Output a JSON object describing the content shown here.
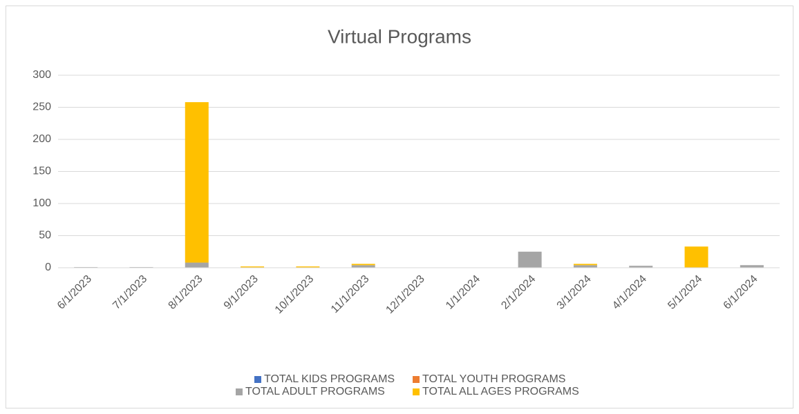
{
  "chart_data": {
    "type": "bar",
    "stacked": true,
    "title": "Virtual Programs",
    "categories": [
      "6/1/2023",
      "7/1/2023",
      "8/1/2023",
      "9/1/2023",
      "10/1/2023",
      "11/1/2023",
      "12/1/2023",
      "1/1/2024",
      "2/1/2024",
      "3/1/2024",
      "4/1/2024",
      "5/1/2024",
      "6/1/2024"
    ],
    "series": [
      {
        "name": "TOTAL KIDS PROGRAMS",
        "color": "#4472c4",
        "values": [
          0,
          0,
          0,
          0,
          0,
          0,
          0,
          0,
          0,
          0,
          0,
          0,
          0
        ]
      },
      {
        "name": "TOTAL YOUTH PROGRAMS",
        "color": "#ed7d31",
        "values": [
          0,
          0,
          0,
          0,
          0,
          0,
          0,
          0,
          0,
          0,
          0,
          0,
          0
        ]
      },
      {
        "name": "TOTAL ADULT PROGRAMS",
        "color": "#a5a5a5",
        "values": [
          1,
          1,
          8,
          0,
          0,
          4,
          0,
          0,
          25,
          4,
          3,
          0,
          4
        ]
      },
      {
        "name": "TOTAL ALL AGES PROGRAMS",
        "color": "#ffc000",
        "values": [
          0,
          0,
          250,
          2,
          2,
          2,
          0,
          0,
          0,
          2,
          0,
          33,
          0
        ]
      }
    ],
    "ylim": [
      0,
      300
    ],
    "yticks": [
      0,
      50,
      100,
      150,
      200,
      250,
      300
    ],
    "grid": true,
    "legend": "bottom"
  }
}
